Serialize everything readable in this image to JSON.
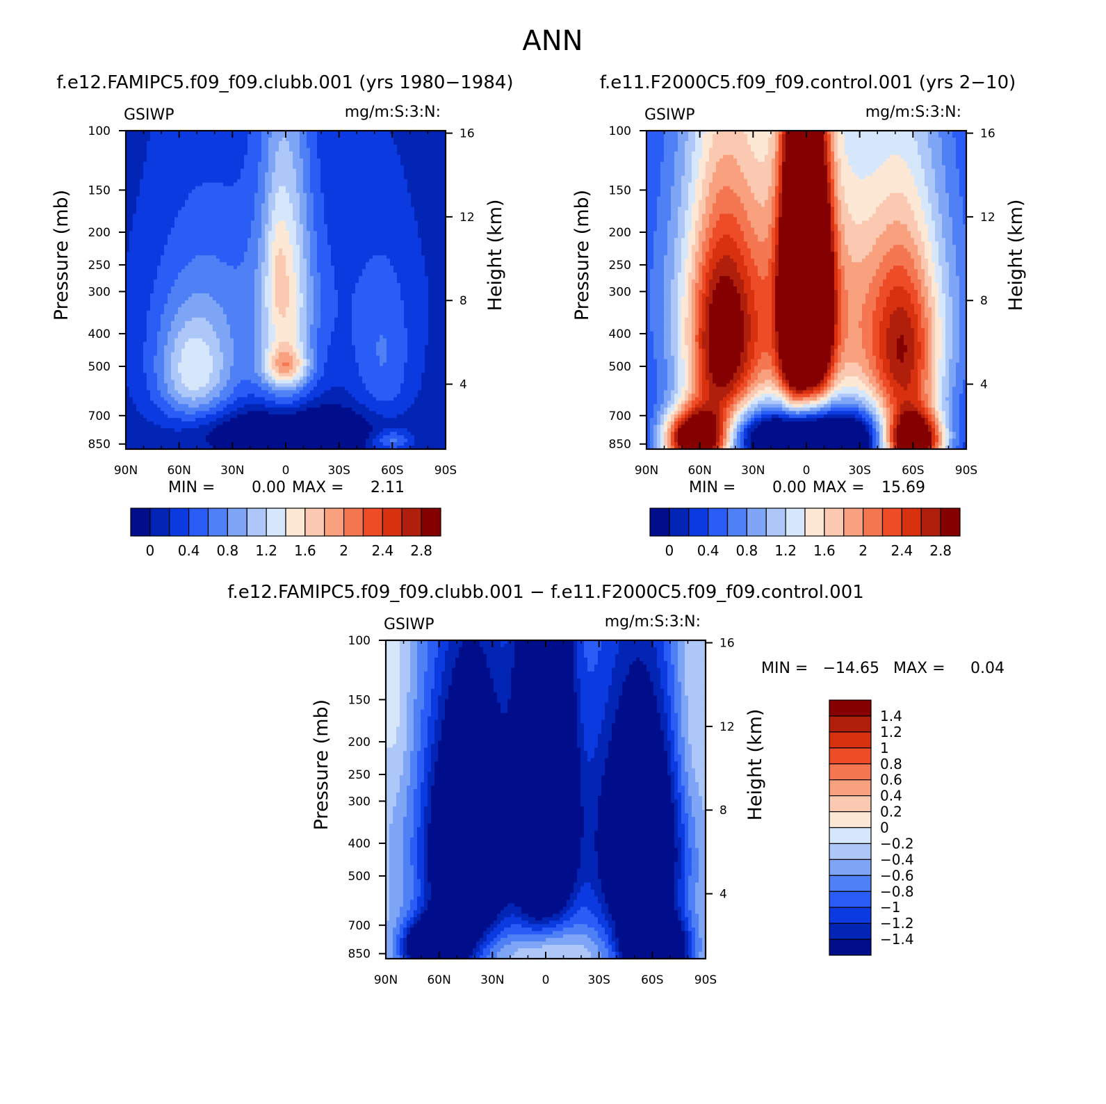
{
  "figure_title": "ANN",
  "colors": {
    "abs_scale": [
      "#000e8c",
      "#0225b5",
      "#0b3be0",
      "#2a5cf6",
      "#4f80f5",
      "#7fa5f6",
      "#adc7f9",
      "#d6e7fb",
      "#fde8d5",
      "#fbc9b1",
      "#f9a07e",
      "#f47752",
      "#ee4c26",
      "#d8310f",
      "#b01f0c",
      "#850000"
    ],
    "diff_scale": [
      "#000e8c",
      "#0225b5",
      "#0b3be0",
      "#2a5cf6",
      "#4f80f5",
      "#7fa5f6",
      "#adc7f9",
      "#d6e7fb",
      "#fde8d5",
      "#fbc9b1",
      "#f9a07e",
      "#f47752",
      "#ee4c26",
      "#d8310f",
      "#b01f0c",
      "#850000"
    ]
  },
  "chart_data": [
    {
      "type": "heatmap",
      "id": "case1",
      "title": "f.e12.FAMIPC5.f09_f09.clubb.001 (yrs 1980−1984)",
      "variable": "GSIWP",
      "units": "mg/m:S:3:N:",
      "xlabel": "",
      "ylabel": "Pressure (mb)",
      "ylabel_right": "Height (km)",
      "x_ticks": [
        "90N",
        "60N",
        "30N",
        "0",
        "30S",
        "60S",
        "90S"
      ],
      "x_range": [
        90,
        -90
      ],
      "y_ticks": [
        100,
        150,
        200,
        250,
        300,
        400,
        500,
        700,
        850
      ],
      "y_range_mb": [
        100,
        880
      ],
      "height_ticks_km": [
        16,
        12,
        8,
        4
      ],
      "min_label": "MIN =",
      "min_value": "0.00",
      "max_label": "MAX =",
      "max_value": "2.11",
      "levels": [
        0,
        0.2,
        0.4,
        0.6,
        0.8,
        1.0,
        1.2,
        1.4,
        1.6,
        1.8,
        2.0,
        2.2,
        2.4,
        2.6,
        2.8
      ],
      "colorbar_labels": [
        "0",
        "0.4",
        "0.8",
        "1.2",
        "1.6",
        "2",
        "2.4",
        "2.8"
      ],
      "background_value": 0.1,
      "blobs": [
        {
          "lat": 0,
          "p": 310,
          "slat": 10,
          "sp": 230,
          "amp": 1.0
        },
        {
          "lat": 5,
          "p": 250,
          "slat": 4,
          "sp": 70,
          "amp": 0.25
        },
        {
          "lat": 0,
          "p": 500,
          "slat": 9,
          "sp": 45,
          "amp": 0.85
        },
        {
          "lat": 0,
          "p": 400,
          "slat": 20,
          "sp": 250,
          "amp": 0.25
        },
        {
          "lat": 52,
          "p": 520,
          "slat": 14,
          "sp": 130,
          "amp": 0.8
        },
        {
          "lat": 48,
          "p": 470,
          "slat": 22,
          "sp": 260,
          "amp": 0.45
        },
        {
          "lat": -55,
          "p": 500,
          "slat": 12,
          "sp": 200,
          "amp": 0.45
        },
        {
          "lat": -60,
          "p": 830,
          "slat": 8,
          "sp": 40,
          "amp": 0.6
        },
        {
          "lat": 0,
          "p": 300,
          "slat": 55,
          "sp": 140,
          "amp": 0.2
        },
        {
          "lat": 0,
          "p": 780,
          "slat": 36,
          "sp": 90,
          "amp": -0.8
        }
      ]
    },
    {
      "type": "heatmap",
      "id": "case2",
      "title": "f.e11.F2000C5.f09_f09.control.001 (yrs 2−10)",
      "variable": "GSIWP",
      "units": "mg/m:S:3:N:",
      "xlabel": "",
      "ylabel": "Pressure (mb)",
      "ylabel_right": "Height (km)",
      "x_ticks": [
        "90N",
        "60N",
        "30N",
        "0",
        "30S",
        "60S",
        "90S"
      ],
      "x_range": [
        90,
        -90
      ],
      "y_ticks": [
        100,
        150,
        200,
        250,
        300,
        400,
        500,
        700,
        850
      ],
      "y_range_mb": [
        100,
        880
      ],
      "height_ticks_km": [
        16,
        12,
        8,
        4
      ],
      "min_label": "MIN =",
      "min_value": "0.00",
      "max_label": "MAX =",
      "max_value": "15.69",
      "levels": [
        0,
        0.2,
        0.4,
        0.6,
        0.8,
        1.0,
        1.2,
        1.4,
        1.6,
        1.8,
        2.0,
        2.2,
        2.4,
        2.6,
        2.8
      ],
      "colorbar_labels": [
        "0",
        "0.4",
        "0.8",
        "1.2",
        "1.6",
        "2",
        "2.4",
        "2.8"
      ],
      "background_value": 0.1,
      "blobs": [
        {
          "lat": 6,
          "p": 300,
          "slat": 6,
          "sp": 200,
          "amp": 3.3
        },
        {
          "lat": -6,
          "p": 310,
          "slat": 6,
          "sp": 180,
          "amp": 2.8
        },
        {
          "lat": 0,
          "p": 420,
          "slat": 22,
          "sp": 320,
          "amp": 1.2
        },
        {
          "lat": 62,
          "p": 820,
          "slat": 13,
          "sp": 110,
          "amp": 3.5
        },
        {
          "lat": 48,
          "p": 450,
          "slat": 13,
          "sp": 230,
          "amp": 1.8
        },
        {
          "lat": 45,
          "p": 450,
          "slat": 28,
          "sp": 450,
          "amp": 0.9
        },
        {
          "lat": -60,
          "p": 830,
          "slat": 12,
          "sp": 110,
          "amp": 3.4
        },
        {
          "lat": -55,
          "p": 480,
          "slat": 14,
          "sp": 220,
          "amp": 1.6
        },
        {
          "lat": -50,
          "p": 450,
          "slat": 30,
          "sp": 400,
          "amp": 0.8
        },
        {
          "lat": 0,
          "p": 290,
          "slat": 62,
          "sp": 190,
          "amp": 0.6
        },
        {
          "lat": 0,
          "p": 800,
          "slat": 38,
          "sp": 110,
          "amp": -2.0
        }
      ]
    },
    {
      "type": "heatmap",
      "id": "diff",
      "title": "f.e12.FAMIPC5.f09_f09.clubb.001 − f.e11.F2000C5.f09_f09.control.001",
      "variable": "GSIWP",
      "units": "mg/m:S:3:N:",
      "xlabel": "",
      "ylabel": "Pressure (mb)",
      "ylabel_right": "Height (km)",
      "x_ticks": [
        "90N",
        "60N",
        "30N",
        "0",
        "30S",
        "60S",
        "90S"
      ],
      "x_range": [
        90,
        -90
      ],
      "y_ticks": [
        100,
        150,
        200,
        250,
        300,
        400,
        500,
        700,
        850
      ],
      "y_range_mb": [
        100,
        880
      ],
      "height_ticks_km": [
        16,
        12,
        8,
        4
      ],
      "min_label": "MIN =",
      "min_value": "−14.65",
      "max_label": "MAX =",
      "max_value": "0.04",
      "levels": [
        -1.4,
        -1.2,
        -1.0,
        -0.8,
        -0.6,
        -0.4,
        -0.2,
        0,
        0.2,
        0.4,
        0.6,
        0.8,
        1.0,
        1.2,
        1.4
      ],
      "colorbar_labels": [
        "1.4",
        "1.2",
        "1",
        "0.8",
        "0.6",
        "0.4",
        "0.2",
        "0",
        "−0.2",
        "−0.4",
        "−0.6",
        "−0.8",
        "−1",
        "−1.2",
        "−1.4"
      ],
      "background_value": -0.1,
      "blobs": [
        {
          "lat": 6,
          "p": 300,
          "slat": 7,
          "sp": 220,
          "amp": -2.2
        },
        {
          "lat": -6,
          "p": 310,
          "slat": 7,
          "sp": 200,
          "amp": -2.0
        },
        {
          "lat": 0,
          "p": 330,
          "slat": 40,
          "sp": 320,
          "amp": -0.7
        },
        {
          "lat": 62,
          "p": 820,
          "slat": 12,
          "sp": 100,
          "amp": -2.6
        },
        {
          "lat": 45,
          "p": 430,
          "slat": 15,
          "sp": 220,
          "amp": -1.8
        },
        {
          "lat": 45,
          "p": 450,
          "slat": 30,
          "sp": 450,
          "amp": -0.6
        },
        {
          "lat": -62,
          "p": 830,
          "slat": 12,
          "sp": 110,
          "amp": -2.6
        },
        {
          "lat": -55,
          "p": 430,
          "slat": 14,
          "sp": 220,
          "amp": -1.8
        },
        {
          "lat": -50,
          "p": 450,
          "slat": 28,
          "sp": 420,
          "amp": -0.6
        },
        {
          "lat": 0,
          "p": 830,
          "slat": 22,
          "sp": 80,
          "amp": 0.35
        },
        {
          "lat": 84,
          "p": 150,
          "slat": 6,
          "sp": 90,
          "amp": 0.25
        },
        {
          "lat": -82,
          "p": 170,
          "slat": 7,
          "sp": 110,
          "amp": 0.25
        }
      ]
    }
  ]
}
